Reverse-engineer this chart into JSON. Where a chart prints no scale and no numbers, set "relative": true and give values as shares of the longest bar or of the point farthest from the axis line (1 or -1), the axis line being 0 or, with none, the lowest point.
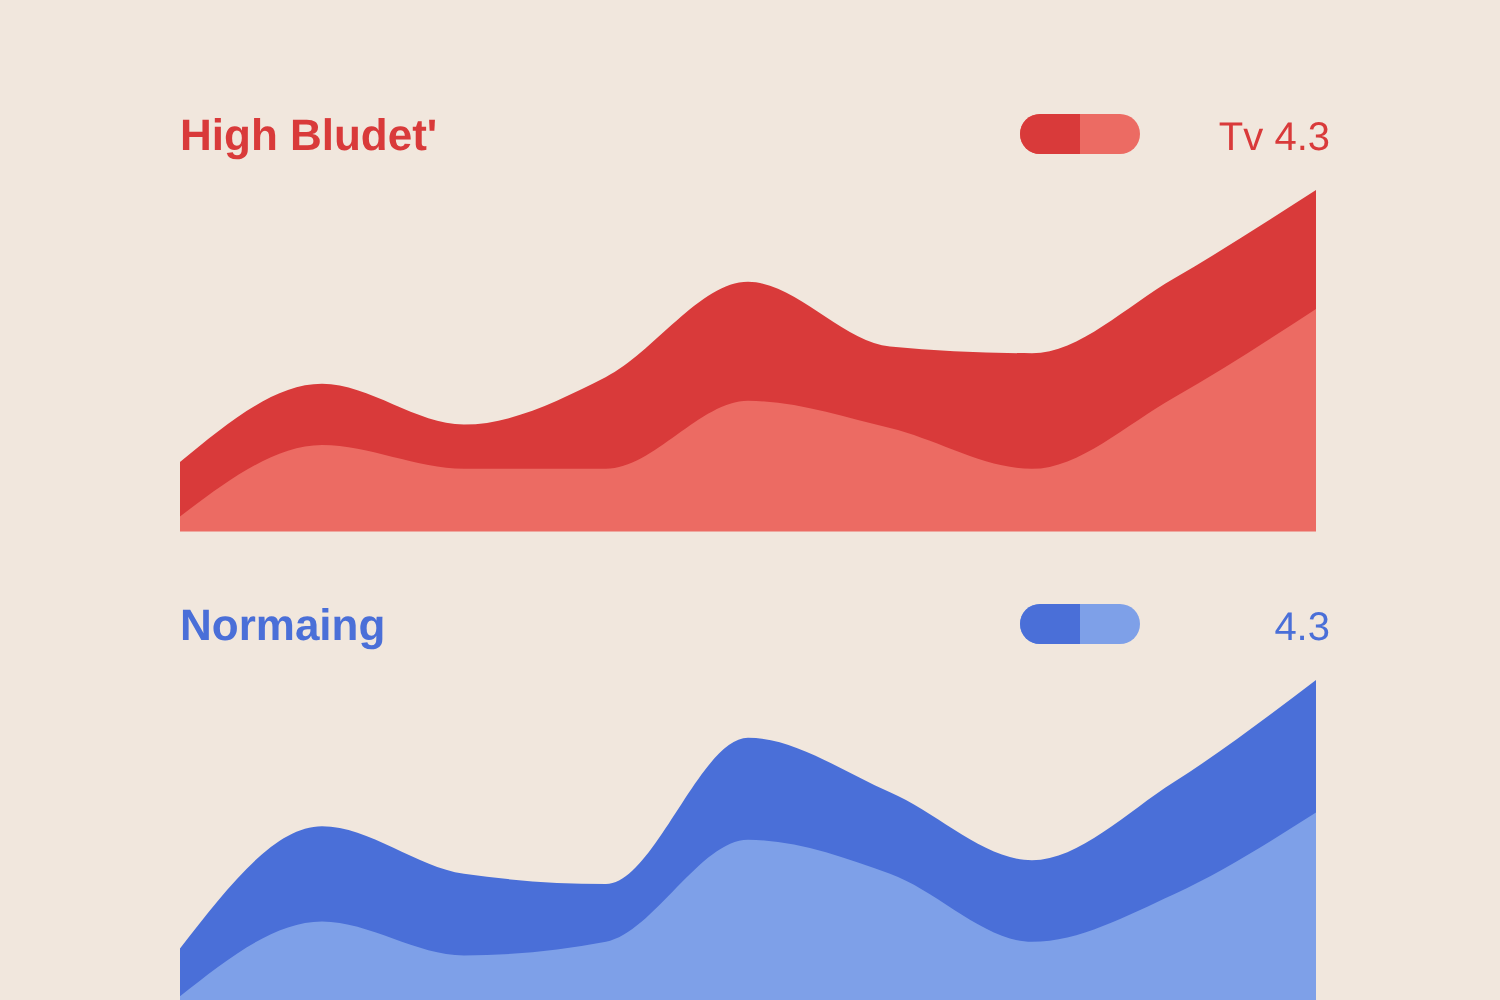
{
  "chart_data": [
    {
      "type": "area",
      "title": "High Bludet'",
      "relative": true,
      "categories": [
        null,
        null,
        null,
        null,
        null,
        null,
        null,
        null,
        null
      ],
      "annotations": [
        "Tv 4.3"
      ],
      "series": [
        {
          "color": "#d93a3a",
          "values": [
            0.2,
            0.43,
            0.31,
            0.45,
            0.73,
            0.54,
            0.52,
            0.74,
            1
          ]
        },
        {
          "color": "#ec6b63",
          "values": [
            0.04,
            0.25,
            0.18,
            0.18,
            0.38,
            0.3,
            0.18,
            0.39,
            0.65
          ]
        }
      ]
    },
    {
      "type": "area",
      "title": "Normaing",
      "relative": true,
      "categories": [
        null,
        null,
        null,
        null,
        null,
        null,
        null,
        null,
        null
      ],
      "annotations": [
        "4.3"
      ],
      "series": [
        {
          "color": "#4a6fd8",
          "values": [
            0.21,
            0.57,
            0.43,
            0.4,
            0.83,
            0.67,
            0.47,
            0.7,
            1
          ]
        },
        {
          "color": "#7ea0e8",
          "values": [
            0.07,
            0.29,
            0.19,
            0.23,
            0.53,
            0.43,
            0.23,
            0.37,
            0.61
          ]
        }
      ]
    }
  ]
}
